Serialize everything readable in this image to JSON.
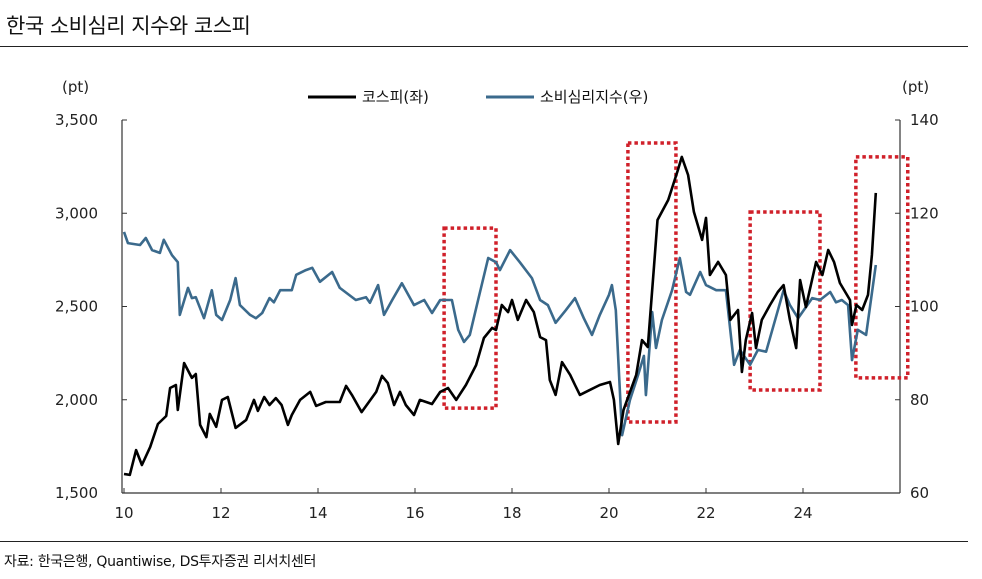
{
  "title": "한국 소비심리 지수와 코스피",
  "source": "자료: 한국은행, Quantiwise, DS투자증권 리서치센터",
  "chart_data": {
    "type": "line",
    "title": "한국 소비심리 지수와 코스피",
    "left_unit": "(pt)",
    "right_unit": "(pt)",
    "xlim": [
      10,
      26
    ],
    "x_ticks": [
      "10",
      "12",
      "14",
      "16",
      "18",
      "20",
      "22",
      "24"
    ],
    "ylim_left": [
      1500,
      3500
    ],
    "y_ticks_left": [
      "1,500",
      "2,000",
      "2,500",
      "3,000",
      "3,500"
    ],
    "ylim_right": [
      60,
      140
    ],
    "y_ticks_right": [
      "60",
      "80",
      "100",
      "120",
      "140"
    ],
    "grid": false,
    "legend": "top-center",
    "series": [
      {
        "name": "코스피(좌)",
        "axis": "left",
        "color": "#000000",
        "points": [
          [
            10.0,
            1602
          ],
          [
            10.12,
            1597
          ],
          [
            10.25,
            1730
          ],
          [
            10.37,
            1650
          ],
          [
            10.54,
            1747
          ],
          [
            10.7,
            1870
          ],
          [
            10.87,
            1913
          ],
          [
            10.95,
            2063
          ],
          [
            11.07,
            2079
          ],
          [
            11.11,
            1945
          ],
          [
            11.24,
            2197
          ],
          [
            11.4,
            2117
          ],
          [
            11.48,
            2138
          ],
          [
            11.57,
            1865
          ],
          [
            11.7,
            1800
          ],
          [
            11.77,
            1924
          ],
          [
            11.9,
            1855
          ],
          [
            12.02,
            1999
          ],
          [
            12.14,
            2015
          ],
          [
            12.3,
            1849
          ],
          [
            12.52,
            1892
          ],
          [
            12.68,
            1999
          ],
          [
            12.76,
            1940
          ],
          [
            12.89,
            2015
          ],
          [
            13.0,
            1972
          ],
          [
            13.13,
            2009
          ],
          [
            13.25,
            1972
          ],
          [
            13.38,
            1865
          ],
          [
            13.46,
            1918
          ],
          [
            13.63,
            1999
          ],
          [
            13.84,
            2042
          ],
          [
            13.96,
            1967
          ],
          [
            14.16,
            1988
          ],
          [
            14.45,
            1988
          ],
          [
            14.58,
            2074
          ],
          [
            14.7,
            2026
          ],
          [
            14.9,
            1934
          ],
          [
            15.2,
            2042
          ],
          [
            15.32,
            2128
          ],
          [
            15.44,
            2090
          ],
          [
            15.57,
            1972
          ],
          [
            15.69,
            2042
          ],
          [
            15.81,
            1972
          ],
          [
            15.98,
            1918
          ],
          [
            16.1,
            1999
          ],
          [
            16.35,
            1977
          ],
          [
            16.52,
            2042
          ],
          [
            16.68,
            2063
          ],
          [
            16.85,
            1999
          ],
          [
            17.05,
            2079
          ],
          [
            17.26,
            2186
          ],
          [
            17.42,
            2331
          ],
          [
            17.59,
            2385
          ],
          [
            17.67,
            2374
          ],
          [
            17.79,
            2508
          ],
          [
            17.92,
            2470
          ],
          [
            18.0,
            2535
          ],
          [
            18.12,
            2428
          ],
          [
            18.29,
            2535
          ],
          [
            18.45,
            2470
          ],
          [
            18.58,
            2336
          ],
          [
            18.7,
            2320
          ],
          [
            18.78,
            2106
          ],
          [
            18.9,
            2026
          ],
          [
            19.03,
            2202
          ],
          [
            19.2,
            2133
          ],
          [
            19.3,
            2079
          ],
          [
            19.4,
            2026
          ],
          [
            19.6,
            2052
          ],
          [
            19.81,
            2079
          ],
          [
            20.02,
            2095
          ],
          [
            20.1,
            1999
          ],
          [
            20.19,
            1763
          ],
          [
            20.3,
            1945
          ],
          [
            20.56,
            2133
          ],
          [
            20.68,
            2320
          ],
          [
            20.8,
            2283
          ],
          [
            20.93,
            2722
          ],
          [
            21.0,
            2964
          ],
          [
            21.22,
            3071
          ],
          [
            21.42,
            3232
          ],
          [
            21.5,
            3302
          ],
          [
            21.63,
            3205
          ],
          [
            21.75,
            3007
          ],
          [
            21.92,
            2857
          ],
          [
            22.0,
            2975
          ],
          [
            22.08,
            2669
          ],
          [
            22.25,
            2739
          ],
          [
            22.41,
            2669
          ],
          [
            22.5,
            2428
          ],
          [
            22.66,
            2481
          ],
          [
            22.74,
            2149
          ],
          [
            22.82,
            2320
          ],
          [
            22.95,
            2465
          ],
          [
            23.03,
            2277
          ],
          [
            23.15,
            2428
          ],
          [
            23.32,
            2508
          ],
          [
            23.48,
            2578
          ],
          [
            23.6,
            2615
          ],
          [
            23.73,
            2428
          ],
          [
            23.86,
            2277
          ],
          [
            23.94,
            2642
          ],
          [
            24.06,
            2497
          ],
          [
            24.27,
            2739
          ],
          [
            24.4,
            2669
          ],
          [
            24.52,
            2803
          ],
          [
            24.64,
            2739
          ],
          [
            24.76,
            2626
          ],
          [
            24.97,
            2535
          ],
          [
            25.01,
            2401
          ],
          [
            25.1,
            2508
          ],
          [
            25.22,
            2481
          ],
          [
            25.34,
            2562
          ],
          [
            25.42,
            2776
          ],
          [
            25.5,
            3109
          ]
        ]
      },
      {
        "name": "소비심리지수(우)",
        "axis": "right",
        "color": "#3b6a8c",
        "points": [
          [
            10.0,
            116.0
          ],
          [
            10.08,
            113.6
          ],
          [
            10.33,
            113.2
          ],
          [
            10.45,
            114.7
          ],
          [
            10.58,
            112.1
          ],
          [
            10.74,
            111.5
          ],
          [
            10.82,
            114.3
          ],
          [
            10.99,
            111.0
          ],
          [
            11.11,
            109.5
          ],
          [
            11.15,
            98.2
          ],
          [
            11.32,
            104.0
          ],
          [
            11.4,
            101.8
          ],
          [
            11.48,
            102.0
          ],
          [
            11.65,
            97.5
          ],
          [
            11.81,
            103.5
          ],
          [
            11.9,
            98.2
          ],
          [
            12.02,
            97.1
          ],
          [
            12.19,
            101.4
          ],
          [
            12.3,
            106.1
          ],
          [
            12.39,
            100.3
          ],
          [
            12.6,
            98.2
          ],
          [
            12.72,
            97.5
          ],
          [
            12.85,
            98.6
          ],
          [
            13.0,
            101.8
          ],
          [
            13.09,
            100.9
          ],
          [
            13.22,
            103.5
          ],
          [
            13.46,
            103.5
          ],
          [
            13.55,
            106.8
          ],
          [
            13.75,
            107.8
          ],
          [
            13.88,
            108.3
          ],
          [
            14.04,
            105.3
          ],
          [
            14.29,
            107.4
          ],
          [
            14.45,
            104.0
          ],
          [
            14.78,
            101.4
          ],
          [
            14.99,
            102.0
          ],
          [
            15.07,
            100.8
          ],
          [
            15.24,
            104.6
          ],
          [
            15.36,
            98.2
          ],
          [
            15.53,
            101.4
          ],
          [
            15.73,
            105.0
          ],
          [
            15.98,
            100.3
          ],
          [
            16.19,
            101.4
          ],
          [
            16.35,
            98.6
          ],
          [
            16.52,
            101.4
          ],
          [
            16.76,
            101.4
          ],
          [
            16.89,
            95.0
          ],
          [
            17.01,
            92.4
          ],
          [
            17.13,
            93.9
          ],
          [
            17.3,
            101.4
          ],
          [
            17.51,
            110.4
          ],
          [
            17.67,
            109.5
          ],
          [
            17.75,
            107.8
          ],
          [
            17.96,
            112.1
          ],
          [
            18.16,
            109.5
          ],
          [
            18.41,
            106.1
          ],
          [
            18.58,
            101.4
          ],
          [
            18.74,
            100.3
          ],
          [
            18.9,
            96.5
          ],
          [
            19.11,
            99.2
          ],
          [
            19.3,
            101.8
          ],
          [
            19.48,
            97.5
          ],
          [
            19.65,
            93.9
          ],
          [
            19.81,
            98.2
          ],
          [
            20.0,
            102.5
          ],
          [
            20.06,
            104.6
          ],
          [
            20.14,
            99.2
          ],
          [
            20.27,
            72.4
          ],
          [
            20.43,
            79.9
          ],
          [
            20.6,
            85.3
          ],
          [
            20.72,
            89.4
          ],
          [
            20.76,
            81.0
          ],
          [
            20.89,
            98.8
          ],
          [
            20.97,
            91.1
          ],
          [
            21.09,
            97.1
          ],
          [
            21.3,
            103.5
          ],
          [
            21.46,
            110.4
          ],
          [
            21.59,
            103.1
          ],
          [
            21.67,
            102.5
          ],
          [
            21.88,
            107.4
          ],
          [
            22.0,
            104.6
          ],
          [
            22.21,
            103.5
          ],
          [
            22.41,
            103.5
          ],
          [
            22.58,
            87.5
          ],
          [
            22.7,
            90.7
          ],
          [
            22.91,
            87.5
          ],
          [
            23.07,
            90.7
          ],
          [
            23.24,
            90.3
          ],
          [
            23.6,
            103.5
          ],
          [
            23.73,
            100.3
          ],
          [
            23.9,
            97.5
          ],
          [
            24.19,
            101.8
          ],
          [
            24.35,
            101.4
          ],
          [
            24.56,
            103.1
          ],
          [
            24.68,
            100.9
          ],
          [
            24.8,
            101.4
          ],
          [
            24.93,
            100.3
          ],
          [
            25.01,
            88.5
          ],
          [
            25.13,
            95.0
          ],
          [
            25.3,
            93.9
          ],
          [
            25.5,
            108.9
          ]
        ]
      }
    ],
    "highlights": {
      "color": "#d0202a",
      "style": "dotted",
      "boxes": [
        {
          "x": [
            16.6,
            17.67
          ],
          "y_left": [
            1955,
            2920
          ]
        },
        {
          "x": [
            20.39,
            21.38
          ],
          "y_left": [
            1881,
            3377
          ]
        },
        {
          "x": [
            22.91,
            24.35
          ],
          "y_left": [
            2052,
            3007
          ]
        },
        {
          "x": [
            25.09,
            26.16
          ],
          "y_left": [
            2117,
            3302
          ]
        }
      ]
    }
  }
}
